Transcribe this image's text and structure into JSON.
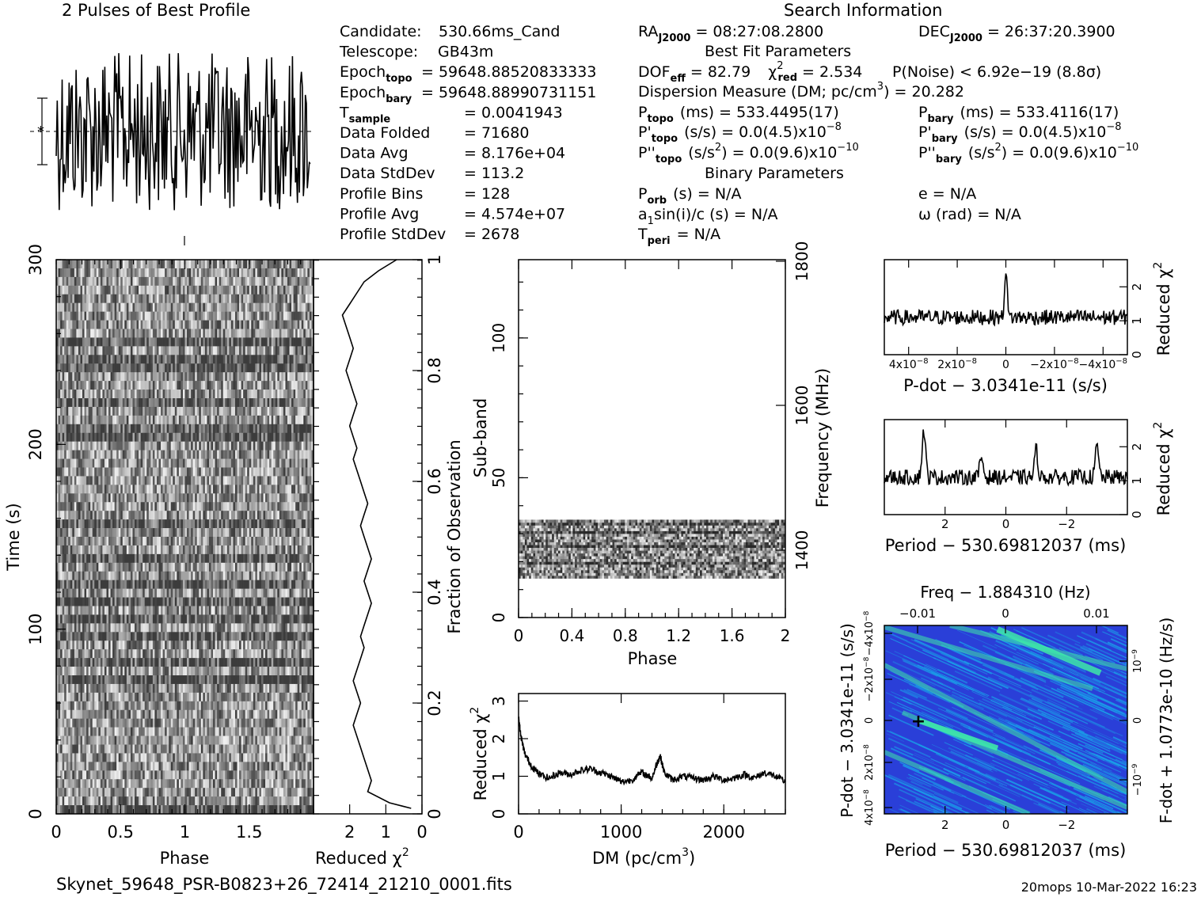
{
  "header": {
    "profile_title": "2 Pulses of Best Profile",
    "search_title": "Search Information",
    "best_fit_title": "Best Fit Parameters",
    "binary_title": "Binary Parameters",
    "filename": "Skynet_59648_PSR-B0823+26_72414_21210_0001.fits",
    "footer_stamp": "20mops 10-Mar-2022 16:23"
  },
  "info_left": [
    {
      "label": "Candidate:",
      "value": "530.66ms_Cand"
    },
    {
      "label": "Telescope:",
      "value": "GB43m"
    },
    {
      "label": "Epoch",
      "sub": "topo",
      "value": "= 59648.88520833333"
    },
    {
      "label": "Epoch",
      "sub": "bary",
      "value": "= 59648.88990731151"
    },
    {
      "label": "T",
      "sub": "sample",
      "value": "=  0.0041943"
    },
    {
      "label": "Data Folded",
      "value": "=  71680"
    },
    {
      "label": "Data Avg",
      "value": "=  8.176e+04"
    },
    {
      "label": "Data StdDev",
      "value": "=  113.2"
    },
    {
      "label": "Profile Bins",
      "value": "=  128"
    },
    {
      "label": "Profile Avg",
      "value": "=  4.574e+07"
    },
    {
      "label": "Profile StdDev",
      "value": "=  2678"
    }
  ],
  "info_mid": {
    "ra": "RA",
    "ra_sub": "J2000",
    "ra_val": "= 08:27:08.2800",
    "dec": "DEC",
    "dec_sub": "J2000",
    "dec_val": "= 26:37:20.3900",
    "dof_line": "DOF",
    "dof_sub": "eff",
    "dof_val": "= 82.79",
    "chi_label": "χ",
    "chi_sup": "2",
    "chi_sub": "red",
    "chi_val": "= 2.534",
    "pnoise": "P(Noise) < 6.92e−19   (8.8σ)",
    "dm_line": "Dispersion Measure (DM; pc/cm",
    "dm_sup": "3",
    "dm_val": ") = 20.282",
    "ptopo": "P",
    "ptopo_sub": "topo",
    "ptopo_val": "(ms) =  533.4495(17)",
    "pdtopo": "P'",
    "pdtopo_sub": "topo",
    "pdtopo_val": "(s/s) = 0.0(4.5)x10",
    "pdtopo_exp": "−8",
    "pddtopo": "P''",
    "pddtopo_sub": "topo",
    "pddtopo_val": "(s/s",
    "pddtopo_val2": ") = 0.0(9.6)x10",
    "pddtopo_exp": "−10",
    "pbary": "P",
    "pbary_sub": "bary",
    "pbary_val": "(ms) =  533.4116(17)",
    "pdbary": "P'",
    "pdbary_sub": "bary",
    "pdbary_val": "(s/s) = 0.0(4.5)x10",
    "pdbary_exp": "−8",
    "pddbary": "P''",
    "pddbary_sub": "bary",
    "pddbary_val": "(s/s",
    "pddbary_val2": ") = 0.0(9.6)x10",
    "pddbary_exp": "−10",
    "sq": "2",
    "porb": "P",
    "porb_sub": "orb",
    "porb_val": "(s) = N/A",
    "asini": "a",
    "asini_sub": "1",
    "asini_val": "sin(i)/c (s) = N/A",
    "tperi": "T",
    "tperi_sub": "peri",
    "tperi_val": "= N/A",
    "ecc": "e = N/A",
    "omega": "ω (rad) = N/A"
  },
  "chart_data": [
    {
      "id": "profile",
      "type": "line",
      "title": "2 Pulses of Best Profile",
      "x_range": [
        0,
        2
      ],
      "note": "noisy profile, no labelled axes"
    },
    {
      "id": "time_phase",
      "type": "heatmap",
      "xlabel": "Phase",
      "ylabel": "Time (s)",
      "x_ticks": [
        "0",
        "0.5",
        "1",
        "1.5"
      ],
      "y_ticks": [
        "0",
        "100",
        "200",
        "300"
      ],
      "xlim": [
        0,
        2
      ],
      "ylim": [
        0,
        300
      ]
    },
    {
      "id": "time_chi2",
      "type": "line",
      "xlabel": "Reduced χ",
      "xlabel_sup": "2",
      "ylabel": "Fraction of Observation",
      "x_ticks": [
        "2",
        "1",
        "0"
      ],
      "y_ticks": [
        "0",
        "0.2",
        "0.4",
        "0.6",
        "0.8",
        "1"
      ],
      "xlim": [
        3,
        0
      ],
      "ylim": [
        0,
        1
      ],
      "x": [
        0.3,
        0.9,
        1.5,
        1.4,
        1.5,
        1.6,
        1.7,
        1.8,
        1.9,
        1.8,
        1.7,
        1.8,
        1.9,
        1.8,
        1.7,
        1.6,
        1.7,
        1.6,
        1.4,
        1.5,
        1.6,
        1.5,
        1.4,
        1.5,
        1.6,
        1.7,
        1.6,
        1.5,
        1.6,
        1.7,
        1.8,
        1.9,
        1.8,
        1.9,
        2.0,
        1.9,
        1.8,
        1.9,
        2.0,
        2.1,
        2.0,
        1.9,
        2.0,
        2.1,
        2.2,
        2.0,
        1.8,
        1.6,
        1.4,
        1.2,
        0.7
      ],
      "y": [
        0.01,
        0.02,
        0.04,
        0.06,
        0.08,
        0.1,
        0.12,
        0.14,
        0.16,
        0.18,
        0.2,
        0.22,
        0.24,
        0.26,
        0.28,
        0.3,
        0.32,
        0.34,
        0.38,
        0.4,
        0.42,
        0.44,
        0.46,
        0.48,
        0.5,
        0.52,
        0.54,
        0.56,
        0.58,
        0.6,
        0.62,
        0.64,
        0.66,
        0.68,
        0.7,
        0.72,
        0.74,
        0.76,
        0.78,
        0.8,
        0.82,
        0.84,
        0.86,
        0.88,
        0.9,
        0.92,
        0.94,
        0.96,
        0.97,
        0.98,
        1.0
      ]
    },
    {
      "id": "subband_phase",
      "type": "heatmap",
      "xlabel": "Phase",
      "ylabel": "Sub-band",
      "y2label": "Frequency (MHz)",
      "x_ticks": [
        "0",
        "0.4",
        "0.8",
        "1.2",
        "1.6",
        "2"
      ],
      "y_ticks": [
        "0",
        "50",
        "100"
      ],
      "y2_ticks": [
        "1400",
        "1600",
        "1800"
      ],
      "xlim": [
        0,
        2
      ],
      "ylim": [
        0,
        128
      ],
      "filled_subbands": [
        14,
        35
      ]
    },
    {
      "id": "dm_chi2",
      "type": "line",
      "xlabel": "DM (pc/cm",
      "xlabel_sup": "3",
      "xlabel_end": ")",
      "ylabel": "Reduced χ",
      "ylabel_sup": "2",
      "x_ticks": [
        "0",
        "1000",
        "2000"
      ],
      "y_ticks": [
        "0",
        "1",
        "2",
        "3"
      ],
      "xlim": [
        0,
        2600
      ],
      "ylim": [
        0,
        3.2
      ],
      "x": [
        0,
        20,
        60,
        120,
        200,
        300,
        400,
        500,
        600,
        700,
        800,
        900,
        1000,
        1100,
        1200,
        1300,
        1350,
        1380,
        1420,
        1500,
        1600,
        1700,
        1800,
        1900,
        2000,
        2100,
        2200,
        2300,
        2400,
        2500,
        2600
      ],
      "values": [
        2.6,
        2.1,
        1.6,
        1.3,
        1.05,
        0.95,
        1.1,
        1.05,
        1.15,
        1.2,
        1.1,
        1.0,
        0.85,
        0.9,
        1.1,
        0.95,
        1.35,
        1.55,
        1.1,
        0.9,
        1.0,
        0.95,
        0.9,
        1.0,
        0.9,
        0.95,
        1.05,
        0.95,
        1.1,
        1.0,
        0.85
      ]
    },
    {
      "id": "pdot_chi2",
      "type": "line",
      "xlabel": "P-dot − 3.0341e-11 (s/s)",
      "ylabel": "Reduced χ",
      "ylabel_sup": "2",
      "x_ticks": [
        "4x10",
        "2x10",
        "0",
        "−2x10",
        "−4x10"
      ],
      "x_tick_exp": "−8",
      "y_ticks": [
        "0",
        "1",
        "2"
      ],
      "xlim": [
        5e-08,
        -5e-08
      ],
      "ylim": [
        0,
        2.8
      ],
      "peak_at": 0,
      "peak_value": 2.6,
      "baseline": 1.1
    },
    {
      "id": "period_chi2",
      "type": "line",
      "xlabel": "Period − 530.69812037 (ms)",
      "ylabel": "Reduced χ",
      "ylabel_sup": "2",
      "x_ticks": [
        "2",
        "0",
        "−2"
      ],
      "y_ticks": [
        "0",
        "1",
        "2"
      ],
      "xlim": [
        4,
        -4
      ],
      "ylim": [
        0,
        2.8
      ],
      "peaks": [
        {
          "x": 2.7,
          "y": 2.5
        },
        {
          "x": 0.8,
          "y": 1.7
        },
        {
          "x": -1.0,
          "y": 1.9
        },
        {
          "x": -3.0,
          "y": 2.0
        }
      ],
      "baseline": 1.1
    },
    {
      "id": "pdot_period_map",
      "type": "heatmap",
      "title": "Freq − 1.884310 (Hz)",
      "xlabel": "Period − 530.69812037 (ms)",
      "ylabel": "P-dot − 3.0341e-11 (s/s)",
      "y2label": "F-dot + 1.0773e-10 (Hz/s)",
      "x_ticks": [
        "2",
        "0",
        "−2"
      ],
      "top_ticks": [
        "−0.01",
        "0",
        "0.01"
      ],
      "y_ticks": [
        "4x10",
        "2x10",
        "0",
        "−2x10",
        "−4x10"
      ],
      "y_tick_exp": "−8",
      "y2_ticks": [
        "−10",
        "0",
        "10"
      ],
      "y2_tick_exp": "−9",
      "best_marker": {
        "x": 2.7,
        "y": 0
      }
    }
  ],
  "colors": {
    "map_base": "#2a3fd8",
    "map_mid": "#1aa0e8",
    "map_ridge": "#3ee8a8"
  }
}
